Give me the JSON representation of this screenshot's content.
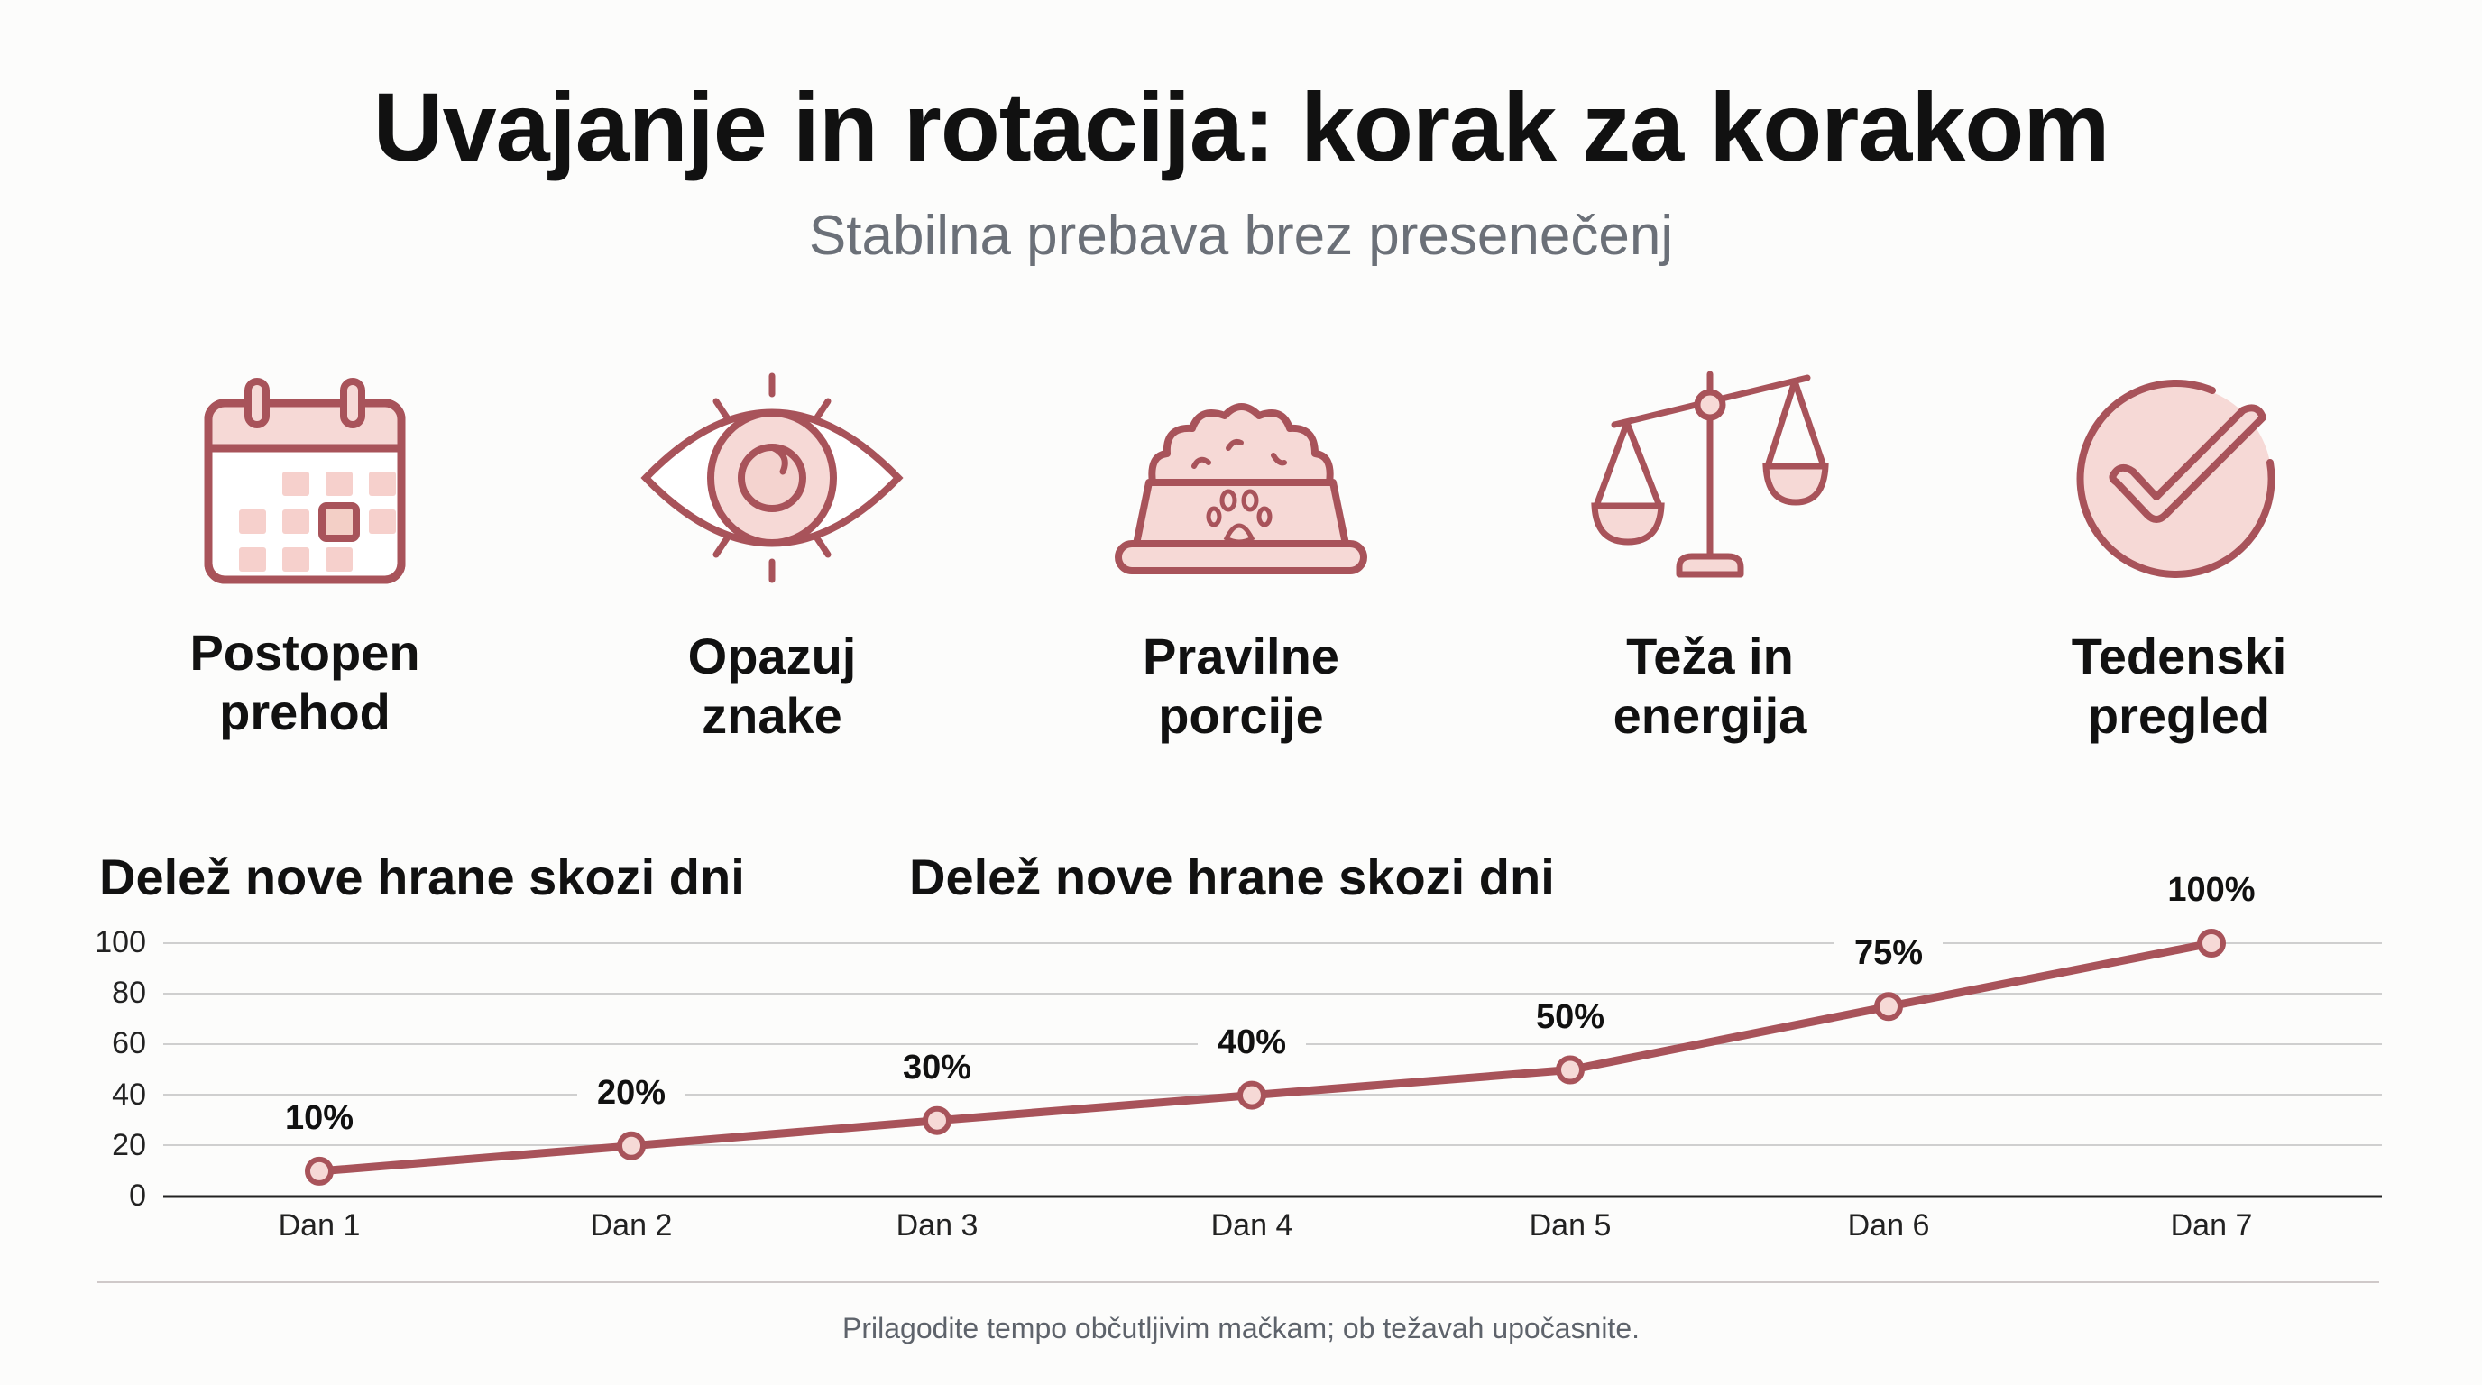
{
  "header": {
    "title": "Uvajanje in rotacija: korak za korakom",
    "subtitle": "Stabilna prebava brez presenečenj"
  },
  "steps": [
    {
      "icon": "calendar-icon",
      "label_line1": "Postopen",
      "label_line2": "prehod"
    },
    {
      "icon": "eye-icon",
      "label_line1": "Opazuj",
      "label_line2": "znake"
    },
    {
      "icon": "food-bowl-icon",
      "label_line1": "Pravilne",
      "label_line2": "porcije"
    },
    {
      "icon": "balance-scale-icon",
      "label_line1": "Teža in",
      "label_line2": "energija"
    },
    {
      "icon": "check-circle-icon",
      "label_line1": "Tedenski",
      "label_line2": "pregled"
    }
  ],
  "colors": {
    "accent": "#a8535a",
    "accent_fill": "#f6d9d6",
    "title": "#111111",
    "subtitle": "#6b7078",
    "grid": "#cfcfcf",
    "axis": "#222222",
    "background": "#fcfcfb"
  },
  "chart_titles": [
    "Delež nove hrane skozi dni",
    "Delež nove hrane skozi dni"
  ],
  "chart_data": {
    "type": "line",
    "title": "Delež nove hrane skozi dni",
    "xlabel": "",
    "ylabel": "",
    "categories": [
      "Dan 1",
      "Dan 2",
      "Dan 3",
      "Dan 4",
      "Dan 5",
      "Dan 6",
      "Dan 7"
    ],
    "series": [
      {
        "name": "Delež nove hrane (%)",
        "values": [
          10,
          20,
          30,
          40,
          50,
          75,
          100
        ]
      }
    ],
    "data_labels": [
      "10%",
      "20%",
      "30%",
      "40%",
      "50%",
      "75%",
      "100%"
    ],
    "yticks": [
      0,
      20,
      40,
      60,
      80,
      100
    ],
    "ylim": [
      0,
      100
    ],
    "grid": true,
    "legend": "none"
  },
  "footer": {
    "note": "Prilagodite tempo občutljivim mačkam; ob težavah upočasnite."
  }
}
